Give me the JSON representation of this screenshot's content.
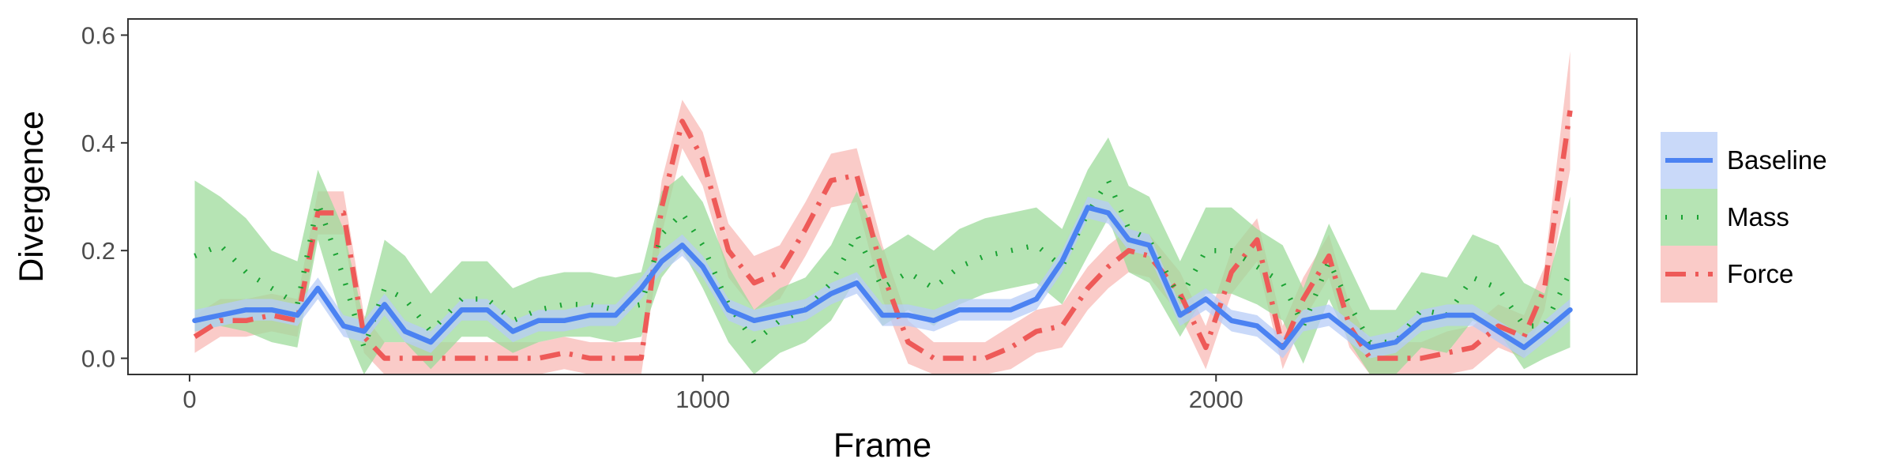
{
  "chart_data": {
    "type": "line",
    "xlabel": "Frame",
    "ylabel": "Divergence",
    "xlim": [
      -120,
      2820
    ],
    "ylim": [
      -0.03,
      0.63
    ],
    "xticks": [
      0,
      1000,
      2000
    ],
    "yticks": [
      0.0,
      0.2,
      0.4,
      0.6
    ],
    "xtick_labels": [
      "0",
      "1000",
      "2000"
    ],
    "ytick_labels": [
      "0.0",
      "0.2",
      "0.4",
      "0.6"
    ],
    "grid": false,
    "legend_position": "right",
    "x": [
      10,
      60,
      110,
      160,
      210,
      250,
      300,
      340,
      380,
      420,
      470,
      530,
      580,
      630,
      680,
      730,
      780,
      830,
      880,
      920,
      960,
      1000,
      1050,
      1100,
      1150,
      1200,
      1250,
      1300,
      1350,
      1400,
      1450,
      1500,
      1550,
      1600,
      1650,
      1700,
      1750,
      1790,
      1830,
      1870,
      1930,
      1980,
      2030,
      2080,
      2130,
      2170,
      2220,
      2260,
      2300,
      2350,
      2400,
      2450,
      2500,
      2550,
      2600,
      2640,
      2690
    ],
    "series": [
      {
        "name": "Baseline",
        "color": "#4b82f2",
        "fill": "#b7ccf7",
        "style": "solid",
        "values": [
          0.07,
          0.08,
          0.09,
          0.09,
          0.08,
          0.13,
          0.06,
          0.05,
          0.1,
          0.05,
          0.03,
          0.09,
          0.09,
          0.05,
          0.07,
          0.07,
          0.08,
          0.08,
          0.13,
          0.18,
          0.21,
          0.17,
          0.09,
          0.07,
          0.08,
          0.09,
          0.12,
          0.14,
          0.08,
          0.08,
          0.07,
          0.09,
          0.09,
          0.09,
          0.11,
          0.18,
          0.28,
          0.27,
          0.22,
          0.21,
          0.08,
          0.11,
          0.07,
          0.06,
          0.02,
          0.07,
          0.08,
          0.05,
          0.02,
          0.03,
          0.07,
          0.08,
          0.08,
          0.05,
          0.02,
          0.05,
          0.09
        ],
        "lower": [
          0.05,
          0.06,
          0.07,
          0.07,
          0.06,
          0.11,
          0.04,
          0.03,
          0.08,
          0.03,
          0.01,
          0.07,
          0.07,
          0.03,
          0.05,
          0.05,
          0.06,
          0.06,
          0.11,
          0.16,
          0.19,
          0.15,
          0.07,
          0.05,
          0.06,
          0.07,
          0.1,
          0.12,
          0.06,
          0.06,
          0.05,
          0.07,
          0.07,
          0.07,
          0.09,
          0.16,
          0.26,
          0.25,
          0.2,
          0.19,
          0.06,
          0.09,
          0.05,
          0.04,
          0.0,
          0.05,
          0.06,
          0.03,
          0.0,
          0.01,
          0.05,
          0.06,
          0.06,
          0.03,
          0.0,
          0.03,
          0.07
        ],
        "upper": [
          0.09,
          0.1,
          0.11,
          0.11,
          0.1,
          0.15,
          0.08,
          0.07,
          0.12,
          0.07,
          0.05,
          0.11,
          0.11,
          0.07,
          0.09,
          0.09,
          0.1,
          0.1,
          0.15,
          0.2,
          0.23,
          0.19,
          0.11,
          0.09,
          0.1,
          0.11,
          0.14,
          0.16,
          0.1,
          0.1,
          0.09,
          0.11,
          0.11,
          0.11,
          0.13,
          0.2,
          0.3,
          0.29,
          0.24,
          0.23,
          0.1,
          0.13,
          0.09,
          0.08,
          0.04,
          0.09,
          0.1,
          0.07,
          0.04,
          0.05,
          0.09,
          0.1,
          0.1,
          0.07,
          0.04,
          0.07,
          0.11
        ]
      },
      {
        "name": "Mass",
        "color": "#1aa333",
        "fill": "#9ddb9b",
        "style": "dotted",
        "values": [
          0.19,
          0.21,
          0.16,
          0.13,
          0.1,
          0.29,
          0.15,
          0.02,
          0.13,
          0.11,
          0.05,
          0.11,
          0.11,
          0.07,
          0.09,
          0.1,
          0.1,
          0.09,
          0.1,
          0.23,
          0.27,
          0.21,
          0.1,
          0.03,
          0.07,
          0.09,
          0.14,
          0.23,
          0.13,
          0.16,
          0.13,
          0.17,
          0.19,
          0.2,
          0.21,
          0.17,
          0.27,
          0.33,
          0.24,
          0.22,
          0.11,
          0.2,
          0.2,
          0.17,
          0.14,
          0.06,
          0.18,
          0.1,
          0.03,
          0.03,
          0.09,
          0.08,
          0.15,
          0.13,
          0.06,
          0.06,
          0.16
        ],
        "lower": [
          0.05,
          0.06,
          0.05,
          0.03,
          0.02,
          0.22,
          0.06,
          -0.03,
          0.03,
          0.03,
          -0.02,
          0.04,
          0.04,
          0.01,
          0.03,
          0.04,
          0.04,
          0.03,
          0.04,
          0.15,
          0.2,
          0.13,
          0.03,
          -0.03,
          0.01,
          0.03,
          0.07,
          0.15,
          0.06,
          0.09,
          0.06,
          0.1,
          0.12,
          0.13,
          0.14,
          0.1,
          0.19,
          0.26,
          0.16,
          0.14,
          0.04,
          0.12,
          0.12,
          0.1,
          0.07,
          -0.01,
          0.11,
          0.03,
          -0.03,
          -0.03,
          0.02,
          0.01,
          0.07,
          0.05,
          -0.02,
          0.0,
          0.02
        ],
        "upper": [
          0.33,
          0.3,
          0.26,
          0.2,
          0.18,
          0.35,
          0.24,
          0.07,
          0.22,
          0.19,
          0.12,
          0.18,
          0.18,
          0.13,
          0.15,
          0.16,
          0.16,
          0.15,
          0.16,
          0.31,
          0.34,
          0.29,
          0.17,
          0.09,
          0.13,
          0.15,
          0.21,
          0.31,
          0.2,
          0.23,
          0.2,
          0.24,
          0.26,
          0.27,
          0.28,
          0.24,
          0.35,
          0.41,
          0.32,
          0.3,
          0.18,
          0.28,
          0.28,
          0.24,
          0.21,
          0.13,
          0.25,
          0.17,
          0.09,
          0.09,
          0.16,
          0.15,
          0.23,
          0.21,
          0.14,
          0.12,
          0.3
        ]
      },
      {
        "name": "Force",
        "color": "#ee5a58",
        "fill": "#f8b9b6",
        "style": "dashdot",
        "values": [
          0.04,
          0.07,
          0.07,
          0.08,
          0.07,
          0.27,
          0.27,
          0.04,
          0.0,
          0.0,
          0.0,
          0.0,
          0.0,
          0.0,
          0.0,
          0.01,
          0.0,
          0.0,
          0.0,
          0.28,
          0.44,
          0.37,
          0.2,
          0.14,
          0.16,
          0.24,
          0.33,
          0.34,
          0.16,
          0.03,
          0.0,
          0.0,
          0.0,
          0.02,
          0.05,
          0.06,
          0.13,
          0.17,
          0.2,
          0.19,
          0.12,
          0.02,
          0.16,
          0.22,
          0.02,
          0.11,
          0.19,
          0.06,
          0.0,
          0.0,
          0.0,
          0.01,
          0.02,
          0.06,
          0.04,
          0.13,
          0.46
        ],
        "lower": [
          0.01,
          0.04,
          0.04,
          0.05,
          0.04,
          0.23,
          0.23,
          0.01,
          -0.03,
          -0.03,
          -0.03,
          -0.03,
          -0.03,
          -0.03,
          -0.03,
          -0.02,
          -0.03,
          -0.03,
          -0.03,
          0.23,
          0.39,
          0.32,
          0.15,
          0.09,
          0.11,
          0.19,
          0.28,
          0.29,
          0.11,
          -0.01,
          -0.03,
          -0.03,
          -0.03,
          -0.02,
          0.01,
          0.02,
          0.09,
          0.13,
          0.16,
          0.15,
          0.08,
          -0.02,
          0.12,
          0.18,
          -0.02,
          0.07,
          0.15,
          0.02,
          -0.03,
          -0.03,
          -0.03,
          -0.03,
          -0.02,
          0.02,
          0.0,
          0.09,
          0.35
        ],
        "upper": [
          0.08,
          0.11,
          0.11,
          0.12,
          0.11,
          0.31,
          0.31,
          0.08,
          0.03,
          0.03,
          0.03,
          0.03,
          0.03,
          0.03,
          0.03,
          0.04,
          0.03,
          0.03,
          0.03,
          0.33,
          0.48,
          0.42,
          0.25,
          0.19,
          0.21,
          0.29,
          0.38,
          0.39,
          0.21,
          0.07,
          0.03,
          0.03,
          0.03,
          0.06,
          0.09,
          0.1,
          0.17,
          0.21,
          0.24,
          0.23,
          0.16,
          0.06,
          0.2,
          0.26,
          0.06,
          0.15,
          0.23,
          0.1,
          0.03,
          0.03,
          0.03,
          0.05,
          0.06,
          0.1,
          0.08,
          0.17,
          0.57
        ]
      }
    ]
  }
}
